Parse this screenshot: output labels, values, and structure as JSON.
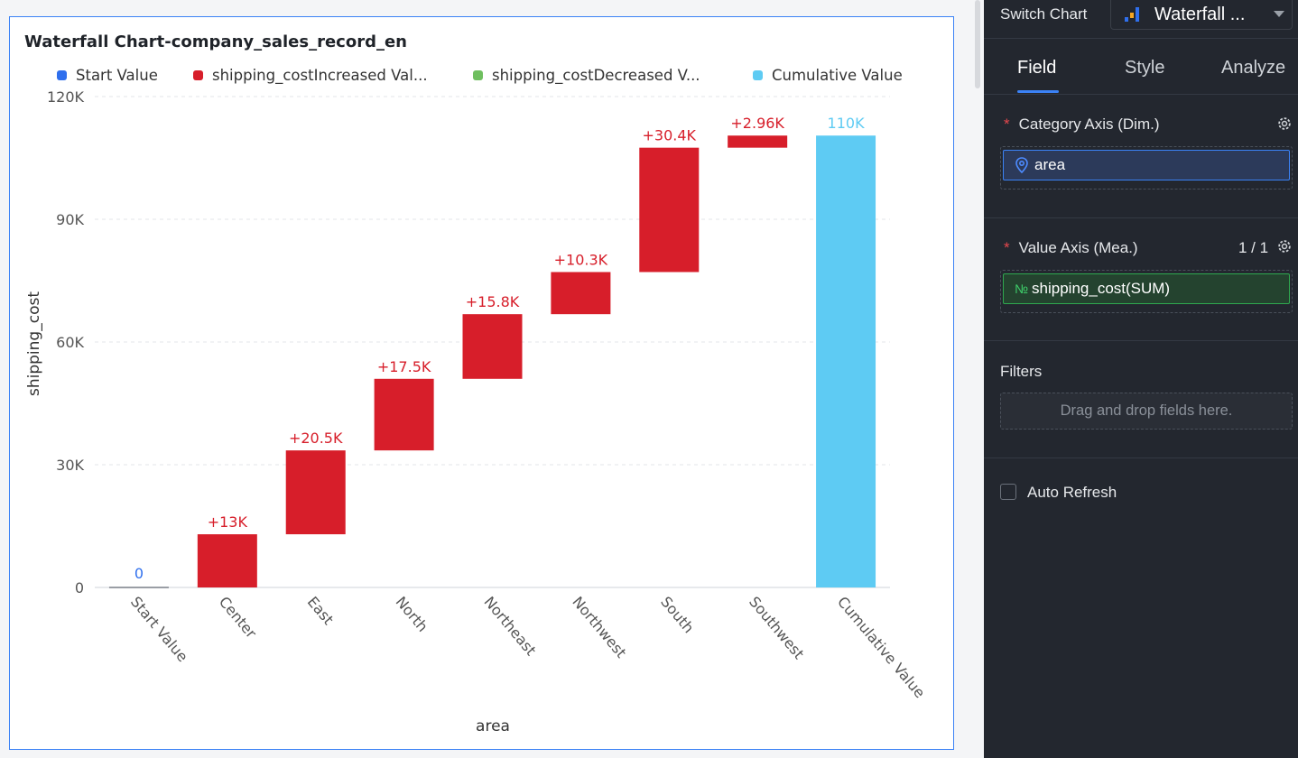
{
  "chart_title": "Waterfall Chart-company_sales_record_en",
  "legend": [
    {
      "label": "Start Value",
      "color": "#2f6fed"
    },
    {
      "label": "shipping_costIncreased Val...",
      "color": "#d71e2a"
    },
    {
      "label": "shipping_costDecreased V...",
      "color": "#6fbf5f"
    },
    {
      "label": "Cumulative Value",
      "color": "#5ecbf3"
    }
  ],
  "chart_data": {
    "type": "bar",
    "subtype": "waterfall",
    "xlabel": "area",
    "ylabel": "shipping_cost",
    "ylim": [
      0,
      120000
    ],
    "y_ticks": [
      "0",
      "30K",
      "60K",
      "90K",
      "120K"
    ],
    "grid": true,
    "legend_position": "top",
    "categories": [
      "Start Value",
      "Center",
      "East",
      "North",
      "Northeast",
      "Northwest",
      "South",
      "Southwest",
      "Cumulative Value"
    ],
    "bars": [
      {
        "category": "Start Value",
        "kind": "start",
        "base": 0,
        "top": 0,
        "label": "0"
      },
      {
        "category": "Center",
        "kind": "increase",
        "base": 0,
        "top": 13000,
        "label": "+13K"
      },
      {
        "category": "East",
        "kind": "increase",
        "base": 13000,
        "top": 33500,
        "label": "+20.5K"
      },
      {
        "category": "North",
        "kind": "increase",
        "base": 33500,
        "top": 51000,
        "label": "+17.5K"
      },
      {
        "category": "Northeast",
        "kind": "increase",
        "base": 51000,
        "top": 66800,
        "label": "+15.8K"
      },
      {
        "category": "Northwest",
        "kind": "increase",
        "base": 66800,
        "top": 77100,
        "label": "+10.3K"
      },
      {
        "category": "South",
        "kind": "increase",
        "base": 77100,
        "top": 107500,
        "label": "+30.4K"
      },
      {
        "category": "Southwest",
        "kind": "increase",
        "base": 107500,
        "top": 110460,
        "label": "+2.96K"
      },
      {
        "category": "Cumulative Value",
        "kind": "cumulative",
        "base": 0,
        "top": 110460,
        "label": "110K"
      }
    ],
    "colors": {
      "start": "#2f6fed",
      "increase": "#d71e2a",
      "decrease": "#6fbf5f",
      "cumulative": "#5ecbf3"
    }
  },
  "panel": {
    "switch_chart_label": "Switch Chart",
    "chart_type_selected": "Waterfall ...",
    "tabs": [
      "Field",
      "Style",
      "Analyze"
    ],
    "active_tab": "Field",
    "category_axis": {
      "required": "*",
      "title": "Category Axis (Dim.)",
      "field": "area"
    },
    "value_axis": {
      "required": "*",
      "title": "Value Axis (Mea.)",
      "count": "1 / 1",
      "field": "shipping_cost(SUM)",
      "field_icon": "№"
    },
    "filters": {
      "title": "Filters",
      "placeholder": "Drag and drop fields here."
    },
    "auto_refresh": {
      "label": "Auto Refresh",
      "checked": false
    }
  }
}
